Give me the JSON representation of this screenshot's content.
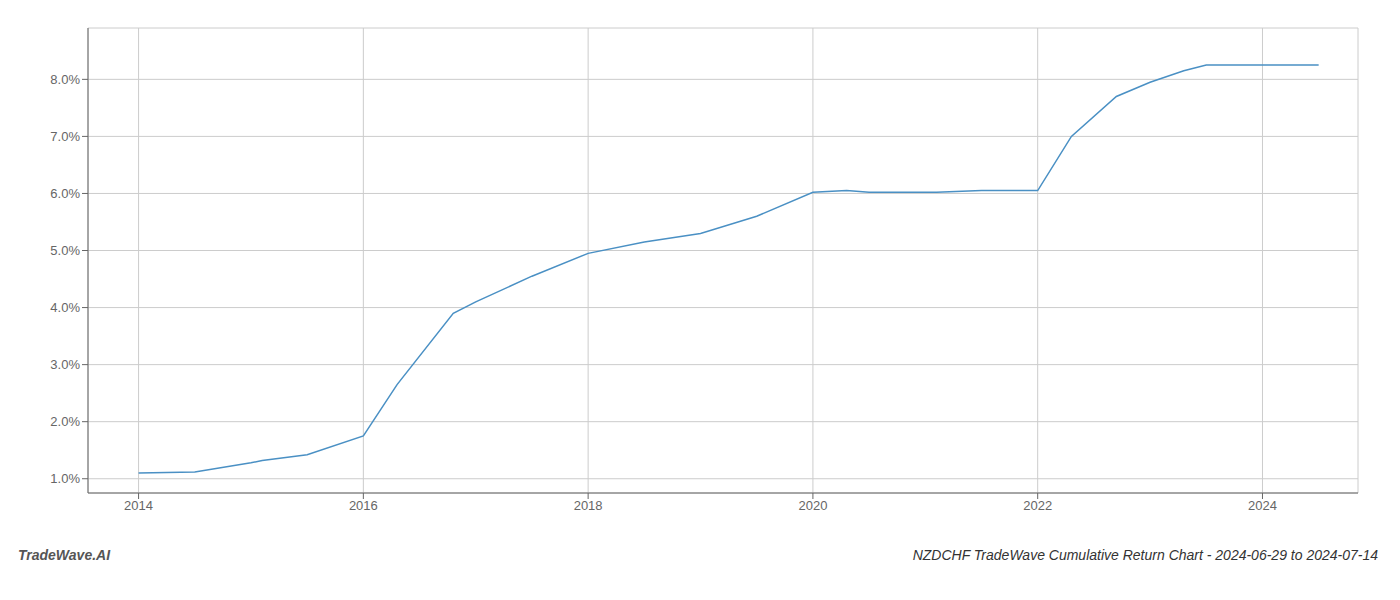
{
  "chart_data": {
    "type": "line",
    "title": "NZDCHF TradeWave Cumulative Return Chart - 2024-06-29 to 2024-07-14",
    "annotations": [
      "TradeWave.AI"
    ],
    "x": [
      2014.0,
      2014.5,
      2015.0,
      2015.1,
      2015.5,
      2016.0,
      2016.3,
      2016.8,
      2017.0,
      2017.5,
      2018.0,
      2018.5,
      2019.0,
      2019.5,
      2020.0,
      2020.3,
      2020.5,
      2021.0,
      2021.1,
      2021.5,
      2022.0,
      2022.3,
      2022.7,
      2023.0,
      2023.3,
      2023.5,
      2024.0,
      2024.5
    ],
    "values": [
      1.1,
      1.12,
      1.28,
      1.32,
      1.42,
      1.75,
      2.65,
      3.9,
      4.1,
      4.55,
      4.95,
      5.15,
      5.3,
      5.6,
      6.02,
      6.05,
      6.02,
      6.02,
      6.02,
      6.05,
      6.05,
      7.0,
      7.7,
      7.95,
      8.15,
      8.25,
      8.25,
      8.25
    ],
    "color": "#4a90c4",
    "xlim": [
      2013.55,
      2024.85
    ],
    "ylim": [
      0.75,
      8.9
    ],
    "xticks": [
      2014,
      2016,
      2018,
      2020,
      2022,
      2024
    ],
    "yticks": [
      {
        "value": 1.0,
        "label": "1.0%"
      },
      {
        "value": 2.0,
        "label": "2.0%"
      },
      {
        "value": 3.0,
        "label": "3.0%"
      },
      {
        "value": 4.0,
        "label": "4.0%"
      },
      {
        "value": 5.0,
        "label": "5.0%"
      },
      {
        "value": 6.0,
        "label": "6.0%"
      },
      {
        "value": 7.0,
        "label": "7.0%"
      },
      {
        "value": 8.0,
        "label": "8.0%"
      }
    ],
    "grid": true
  }
}
